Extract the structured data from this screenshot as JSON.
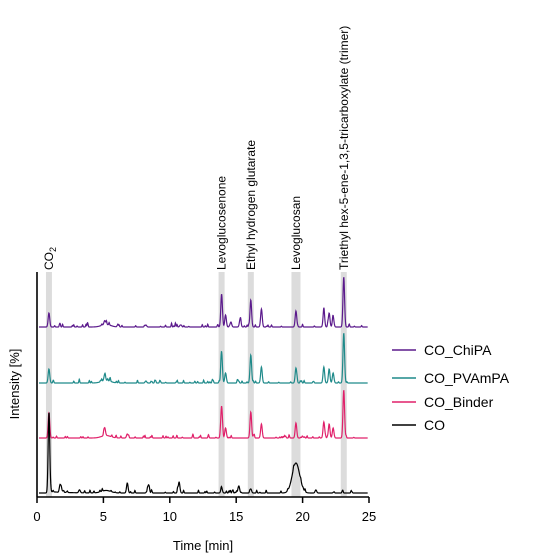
{
  "chart_data": {
    "type": "line",
    "xlabel": "Time [min]",
    "ylabel": "Intensity [%]",
    "xlim": [
      0,
      25
    ],
    "x_ticks": [
      0,
      5,
      10,
      15,
      20,
      25
    ],
    "grid": false,
    "legend_position": "right",
    "annotations": [
      {
        "label": "CO",
        "subscript": "2",
        "x": 0.9
      },
      {
        "label": "Levoglucosenone",
        "x": 13.9
      },
      {
        "label": "Ethyl hydrogen glutarate",
        "x": 16.1
      },
      {
        "label": "Levoglucosan",
        "x": 19.5
      },
      {
        "label": "Triethyl hex-5-ene-1,3,5-tricarboxylate (trimer)",
        "x": 23.1
      }
    ],
    "series": [
      {
        "name": "CO_ChiPA",
        "color": "#5b1a8c",
        "peaks": [
          [
            0.9,
            14
          ],
          [
            5.1,
            4
          ],
          [
            8.2,
            2
          ],
          [
            10.8,
            2
          ],
          [
            13.9,
            33
          ],
          [
            14.2,
            12
          ],
          [
            14.6,
            5
          ],
          [
            15.3,
            8
          ],
          [
            16.1,
            27
          ],
          [
            16.9,
            18
          ],
          [
            19.5,
            16
          ],
          [
            21.6,
            17
          ],
          [
            22.0,
            14
          ],
          [
            22.3,
            10
          ],
          [
            23.1,
            50
          ]
        ]
      },
      {
        "name": "CO_PVAmPA",
        "color": "#1f8a8a",
        "peaks": [
          [
            0.9,
            14
          ],
          [
            5.1,
            6
          ],
          [
            8.2,
            2
          ],
          [
            13.9,
            31
          ],
          [
            14.2,
            10
          ],
          [
            16.1,
            28
          ],
          [
            16.9,
            16
          ],
          [
            19.5,
            15
          ],
          [
            21.6,
            16
          ],
          [
            22.0,
            14
          ],
          [
            22.3,
            10
          ],
          [
            23.1,
            50
          ]
        ]
      },
      {
        "name": "CO_Binder",
        "color": "#e0206a",
        "peaks": [
          [
            0.9,
            25
          ],
          [
            5.1,
            7
          ],
          [
            6.8,
            4
          ],
          [
            13.9,
            32
          ],
          [
            14.2,
            10
          ],
          [
            16.1,
            26
          ],
          [
            16.9,
            14
          ],
          [
            19.5,
            15
          ],
          [
            21.6,
            16
          ],
          [
            22.0,
            14
          ],
          [
            22.3,
            10
          ],
          [
            23.1,
            48
          ]
        ]
      },
      {
        "name": "CO",
        "color": "#000000",
        "peaks": [
          [
            0.9,
            80
          ],
          [
            1.8,
            7
          ],
          [
            3.2,
            3
          ],
          [
            6.8,
            10
          ],
          [
            8.4,
            8
          ],
          [
            10.7,
            11
          ],
          [
            13.9,
            5
          ],
          [
            15.2,
            7
          ],
          [
            16.1,
            4
          ],
          [
            19.5,
            30
          ],
          [
            21.0,
            3
          ]
        ]
      }
    ]
  }
}
